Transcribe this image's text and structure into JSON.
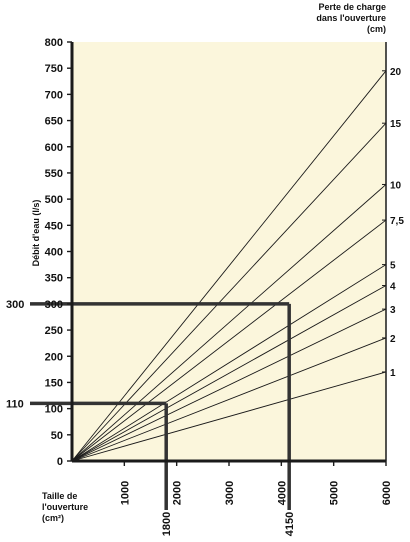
{
  "chart_data": {
    "type": "line",
    "xlabel_lines": [
      "Taille de",
      "l'ouverture",
      "(cm²)"
    ],
    "ylabel": "Débit d'eau (l/s)",
    "right_title_lines": [
      "Perte de charge",
      "dans l'ouverture",
      "(cm)"
    ],
    "xlim": [
      0,
      6000
    ],
    "ylim": [
      0,
      800
    ],
    "x_ticks": [
      1000,
      2000,
      3000,
      4000,
      5000,
      6000
    ],
    "y_ticks": [
      0,
      50,
      100,
      150,
      200,
      250,
      300,
      350,
      400,
      450,
      500,
      550,
      600,
      650,
      700,
      750,
      800
    ],
    "y_tick_labels": [
      "0",
      "50",
      "100",
      "150",
      "200",
      "250",
      "300",
      "350",
      "400",
      "450",
      "500",
      "550",
      "600",
      "650",
      "700",
      "750",
      "800"
    ],
    "series": [
      {
        "name": "20",
        "x": [
          0,
          6000
        ],
        "y": [
          0,
          745
        ]
      },
      {
        "name": "15",
        "x": [
          0,
          6000
        ],
        "y": [
          0,
          645
        ]
      },
      {
        "name": "10",
        "x": [
          0,
          6000
        ],
        "y": [
          0,
          528
        ]
      },
      {
        "name": "7,5",
        "x": [
          0,
          6000
        ],
        "y": [
          0,
          460
        ]
      },
      {
        "name": "5",
        "x": [
          0,
          6000
        ],
        "y": [
          0,
          375
        ]
      },
      {
        "name": "4",
        "x": [
          0,
          6000
        ],
        "y": [
          0,
          335
        ]
      },
      {
        "name": "3",
        "x": [
          0,
          6000
        ],
        "y": [
          0,
          290
        ]
      },
      {
        "name": "2",
        "x": [
          0,
          6000
        ],
        "y": [
          0,
          235
        ]
      },
      {
        "name": "1",
        "x": [
          0,
          6000
        ],
        "y": [
          0,
          170
        ]
      }
    ],
    "annotations": [
      {
        "flow": 300,
        "size": 4150,
        "flow_label": "300",
        "size_label": "4150"
      },
      {
        "flow": 110,
        "size": 1800,
        "flow_label": "110",
        "size_label": "1800"
      }
    ],
    "colors": {
      "plot_bg": "#fbf6dc",
      "line": "#1a1a1a",
      "guide": "#333333"
    }
  }
}
